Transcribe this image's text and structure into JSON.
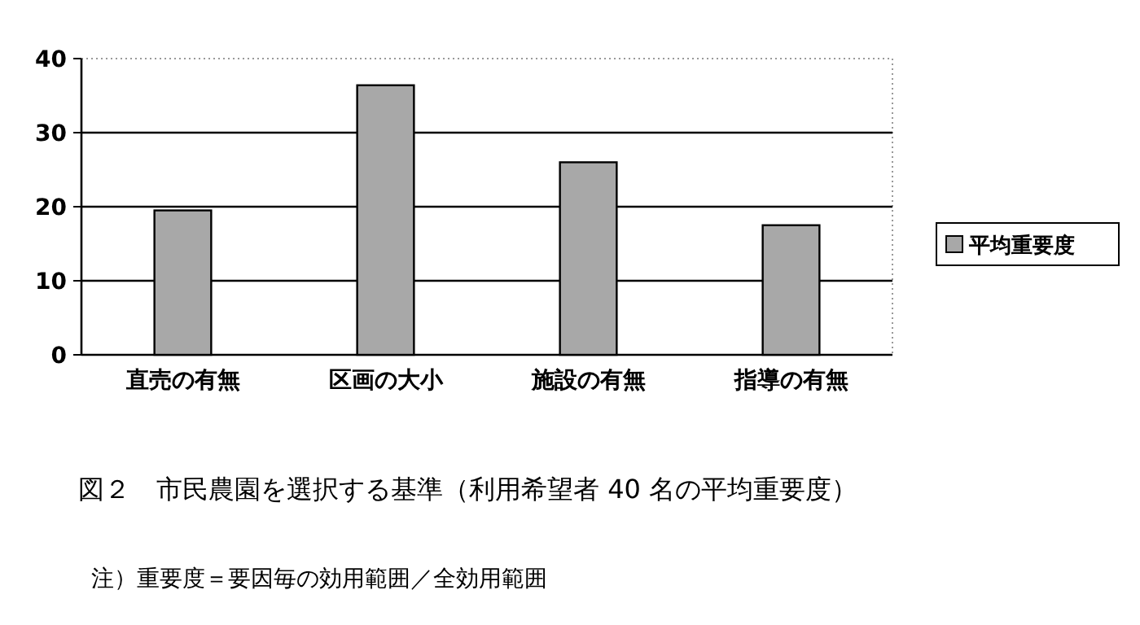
{
  "chart_data": {
    "type": "bar",
    "title": "図２　市民農園を選択する基準（利用希望者 40 名の平均重要度）",
    "annotations": [
      "注）重要度＝要因毎の効用範囲／全効用範囲"
    ],
    "categories": [
      "直売の有無",
      "区画の大小",
      "施設の有無",
      "指導の有無"
    ],
    "series": [
      {
        "name": "平均重要度",
        "color": "#a8a8a8",
        "values": [
          19.5,
          36.4,
          26,
          17.5
        ]
      }
    ],
    "ylim": [
      0,
      40
    ],
    "yticks": [
      0,
      10,
      20,
      30,
      40
    ],
    "grid": "y",
    "legend": "right"
  }
}
